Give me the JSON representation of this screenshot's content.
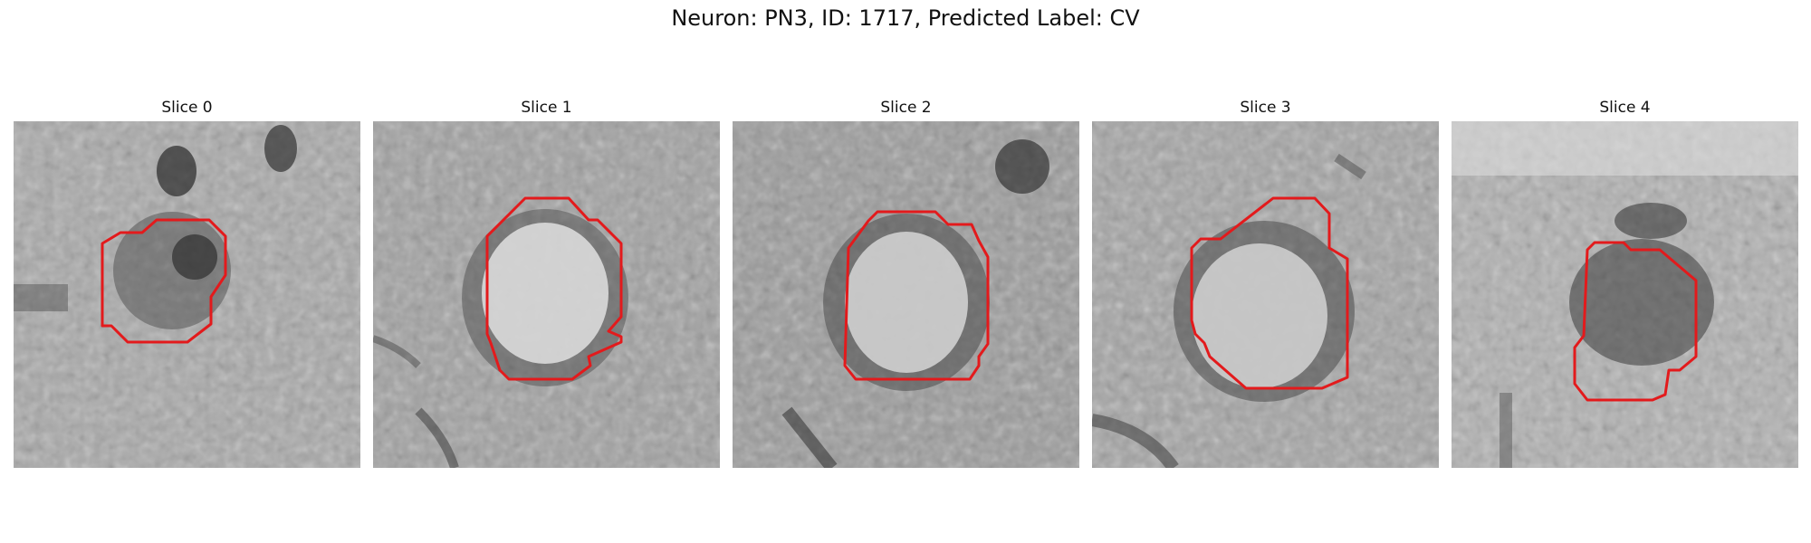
{
  "figure": {
    "title": "Neuron: PN3, ID: 1717, Predicted Label: CV"
  },
  "colors": {
    "contour": "#e31a1c",
    "background": "#ffffff"
  },
  "panels": [
    {
      "title": "Slice 0"
    },
    {
      "title": "Slice 1"
    },
    {
      "title": "Slice 2"
    },
    {
      "title": "Slice 3"
    },
    {
      "title": "Slice 4"
    }
  ]
}
